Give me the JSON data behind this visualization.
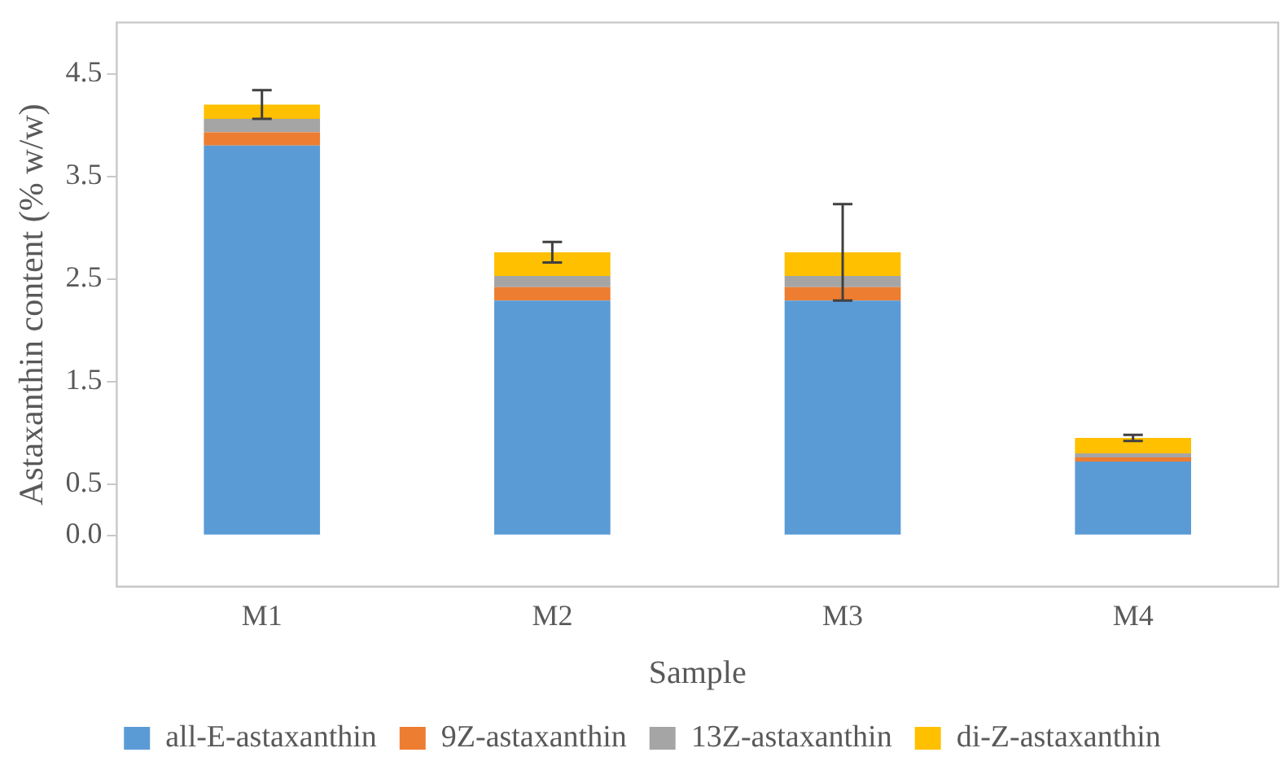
{
  "chart_data": {
    "type": "bar",
    "stacked": true,
    "xlabel": "Sample",
    "ylabel": "Astaxanthin content (% w/w)",
    "categories": [
      "M1",
      "M2",
      "M3",
      "M4"
    ],
    "series": [
      {
        "name": "all-E-astaxanthin",
        "color": "#5b9bd5",
        "values": [
          3.8,
          2.29,
          2.29,
          0.72
        ]
      },
      {
        "name": "9Z-astaxanthin",
        "color": "#ed7d31",
        "values": [
          0.13,
          0.13,
          0.13,
          0.04
        ]
      },
      {
        "name": "13Z-astaxanthin",
        "color": "#a5a5a5",
        "values": [
          0.13,
          0.11,
          0.11,
          0.04
        ]
      },
      {
        "name": "di-Z-astaxanthin",
        "color": "#ffc000",
        "values": [
          0.14,
          0.23,
          0.23,
          0.15
        ],
        "errors": [
          0.14,
          0.1,
          0.47,
          0.03
        ]
      }
    ],
    "ylim": [
      -0.5,
      5.0
    ],
    "yticks": [
      {
        "value": 0,
        "label": "0.0"
      },
      0.5,
      1.5,
      2.5,
      3.5,
      4.5
    ],
    "grid": false,
    "legend": "bottom"
  }
}
